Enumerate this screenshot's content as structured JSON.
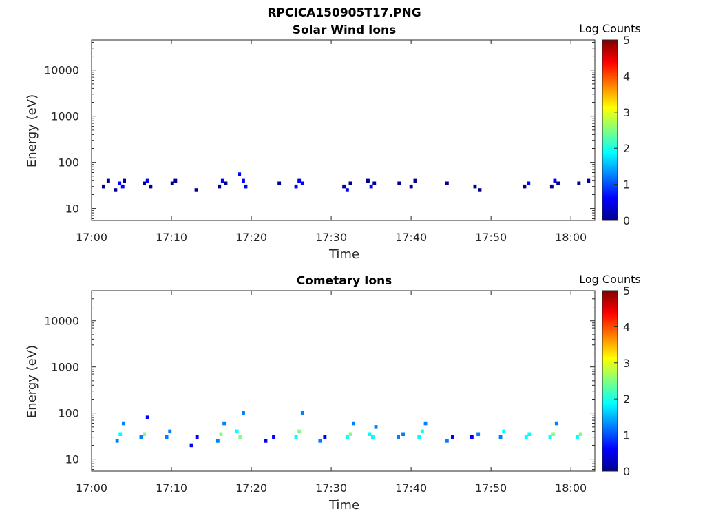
{
  "figure_title": "RPCICA150905T17.PNG",
  "colormap": [
    "#00008f",
    "#0000ff",
    "#0080ff",
    "#00ffff",
    "#80ff80",
    "#ffff00",
    "#ff8000",
    "#ff0000",
    "#800000"
  ],
  "chart_data": [
    {
      "type": "heatmap",
      "title": "Solar Wind Ions",
      "xlabel": "Time",
      "ylabel": "Energy (eV)",
      "yscale": "log",
      "ylim": [
        5.5,
        45000
      ],
      "xlim_minutes": [
        0,
        63
      ],
      "x_ticks": [
        "17:00",
        "17:10",
        "17:20",
        "17:30",
        "17:40",
        "17:50",
        "18:00"
      ],
      "y_ticks": [
        "10",
        "100",
        "1000",
        "10000"
      ],
      "colorbar": {
        "title": "Log Counts",
        "ticks": [
          "0",
          "1",
          "2",
          "3",
          "4",
          "5"
        ],
        "range": [
          0,
          5
        ]
      },
      "cells": [
        [
          1.5,
          30,
          0.2
        ],
        [
          2.1,
          40,
          0.1
        ],
        [
          3.0,
          25,
          0.3
        ],
        [
          3.5,
          35,
          0.4
        ],
        [
          3.9,
          30,
          0.5
        ],
        [
          4.1,
          40,
          0.3
        ],
        [
          6.6,
          35,
          0.3
        ],
        [
          7.0,
          40,
          0.4
        ],
        [
          7.4,
          30,
          0.3
        ],
        [
          10.1,
          35,
          0.2
        ],
        [
          10.5,
          40,
          0.3
        ],
        [
          13.1,
          25,
          0.2
        ],
        [
          16.0,
          30,
          0.3
        ],
        [
          16.4,
          40,
          0.4
        ],
        [
          16.8,
          35,
          0.3
        ],
        [
          18.5,
          55,
          0.4
        ],
        [
          19.0,
          40,
          0.5
        ],
        [
          19.3,
          30,
          0.4
        ],
        [
          23.5,
          35,
          0.3
        ],
        [
          25.6,
          30,
          0.4
        ],
        [
          26.0,
          40,
          0.5
        ],
        [
          26.4,
          35,
          0.4
        ],
        [
          31.6,
          30,
          0.3
        ],
        [
          32.0,
          25,
          0.4
        ],
        [
          32.4,
          35,
          0.3
        ],
        [
          34.6,
          40,
          0.3
        ],
        [
          35.0,
          30,
          0.4
        ],
        [
          35.4,
          35,
          0.3
        ],
        [
          38.5,
          35,
          0.2
        ],
        [
          40.0,
          30,
          0.3
        ],
        [
          40.5,
          40,
          0.2
        ],
        [
          44.5,
          35,
          0.3
        ],
        [
          48.0,
          30,
          0.2
        ],
        [
          48.6,
          25,
          0.3
        ],
        [
          54.2,
          30,
          0.3
        ],
        [
          54.7,
          35,
          0.4
        ],
        [
          57.6,
          30,
          0.3
        ],
        [
          58.0,
          40,
          0.4
        ],
        [
          58.4,
          35,
          0.3
        ],
        [
          61.0,
          35,
          0.3
        ],
        [
          62.2,
          40,
          0.2
        ]
      ]
    },
    {
      "type": "heatmap",
      "title": "Cometary Ions",
      "xlabel": "Time",
      "ylabel": "Energy (eV)",
      "yscale": "log",
      "ylim": [
        5.5,
        45000
      ],
      "xlim_minutes": [
        0,
        63
      ],
      "x_ticks": [
        "17:00",
        "17:10",
        "17:20",
        "17:30",
        "17:40",
        "17:50",
        "18:00"
      ],
      "y_ticks": [
        "10",
        "100",
        "1000",
        "10000"
      ],
      "colorbar": {
        "title": "Log Counts",
        "ticks": [
          "0",
          "1",
          "2",
          "3",
          "4",
          "5"
        ],
        "range": [
          0,
          5
        ]
      },
      "cells": [
        [
          3.2,
          25,
          1.2
        ],
        [
          3.6,
          35,
          2.0
        ],
        [
          4.0,
          60,
          1.0
        ],
        [
          6.2,
          30,
          1.4
        ],
        [
          6.6,
          35,
          2.2
        ],
        [
          7.0,
          80,
          0.8
        ],
        [
          9.4,
          30,
          1.2
        ],
        [
          9.8,
          40,
          1.0
        ],
        [
          12.5,
          20,
          0.8
        ],
        [
          13.2,
          30,
          0.9
        ],
        [
          15.8,
          25,
          1.4
        ],
        [
          16.2,
          35,
          2.2
        ],
        [
          16.6,
          60,
          1.2
        ],
        [
          18.2,
          40,
          1.8
        ],
        [
          18.6,
          30,
          2.6
        ],
        [
          19.0,
          100,
          1.2
        ],
        [
          21.8,
          25,
          0.6
        ],
        [
          22.8,
          30,
          0.8
        ],
        [
          25.6,
          30,
          1.6
        ],
        [
          26.0,
          40,
          2.2
        ],
        [
          26.4,
          100,
          1.0
        ],
        [
          28.6,
          25,
          1.2
        ],
        [
          29.2,
          30,
          0.8
        ],
        [
          32.0,
          30,
          1.6
        ],
        [
          32.4,
          35,
          2.2
        ],
        [
          32.8,
          60,
          1.0
        ],
        [
          34.8,
          35,
          1.6
        ],
        [
          35.2,
          30,
          2.0
        ],
        [
          35.6,
          50,
          1.0
        ],
        [
          38.4,
          30,
          1.2
        ],
        [
          39.0,
          35,
          1.0
        ],
        [
          41.0,
          30,
          1.6
        ],
        [
          41.4,
          40,
          2.0
        ],
        [
          41.8,
          60,
          1.0
        ],
        [
          44.5,
          25,
          1.0
        ],
        [
          45.2,
          30,
          0.8
        ],
        [
          47.6,
          30,
          0.8
        ],
        [
          48.4,
          35,
          1.2
        ],
        [
          51.2,
          30,
          1.4
        ],
        [
          51.6,
          40,
          2.0
        ],
        [
          54.4,
          30,
          1.6
        ],
        [
          54.8,
          35,
          2.0
        ],
        [
          57.4,
          30,
          1.6
        ],
        [
          57.8,
          35,
          2.4
        ],
        [
          58.2,
          60,
          1.0
        ],
        [
          60.8,
          30,
          1.6
        ],
        [
          61.2,
          35,
          2.2
        ]
      ]
    }
  ]
}
